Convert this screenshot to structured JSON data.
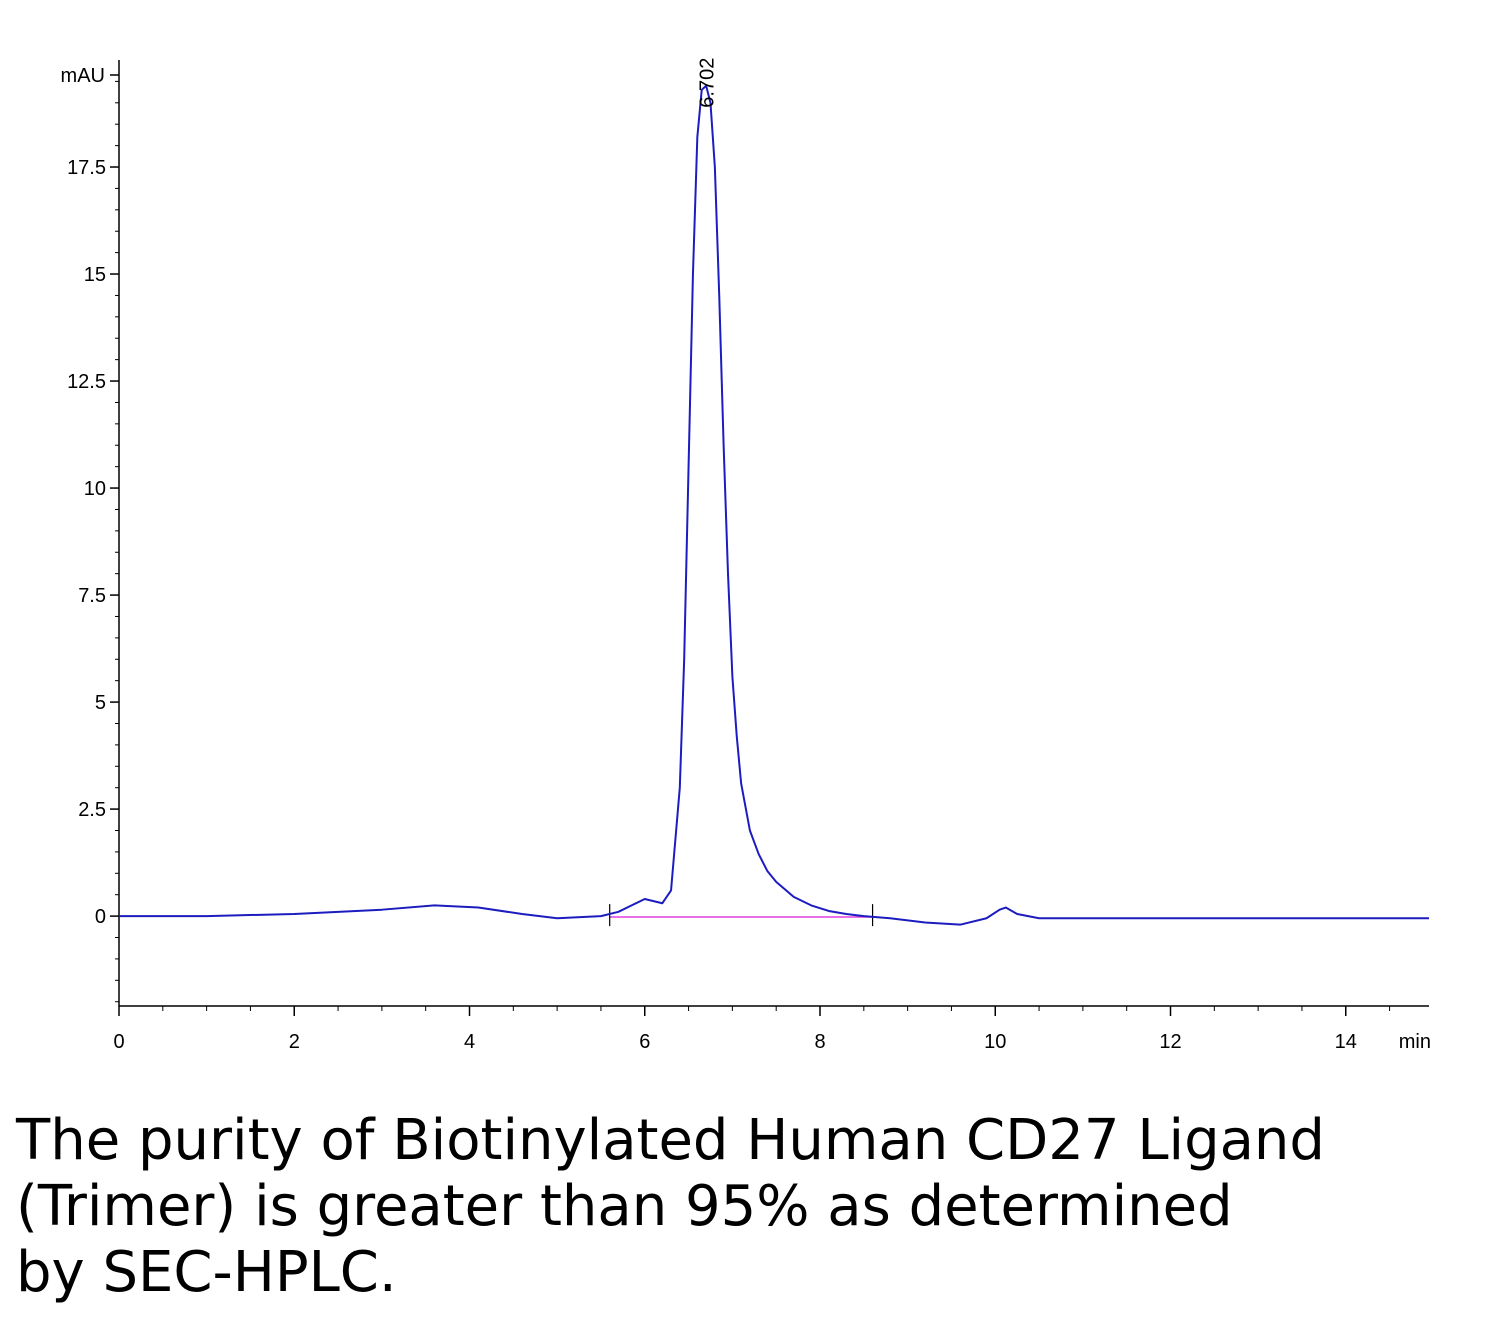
{
  "chart_data": {
    "type": "line",
    "title": "",
    "xlabel": "min",
    "ylabel": "mAU",
    "xlim": [
      0,
      14.95
    ],
    "ylim": [
      -2.1,
      20
    ],
    "x_ticks": [
      0,
      2,
      4,
      6,
      8,
      10,
      12,
      14
    ],
    "x_tick_labels": [
      "0",
      "2",
      "4",
      "6",
      "8",
      "10",
      "12",
      "14"
    ],
    "y_ticks": [
      0,
      2.5,
      5,
      7.5,
      10,
      12.5,
      15,
      17.5
    ],
    "y_tick_labels": [
      "0",
      "2.5",
      "5",
      "7.5",
      "10",
      "12.5",
      "15",
      "17.5"
    ],
    "series": [
      {
        "color": "#1c1cbf",
        "x": [
          0,
          1,
          2,
          3,
          3.6,
          4.1,
          4.6,
          5.0,
          5.5,
          5.7,
          5.85,
          6.0,
          6.1,
          6.2,
          6.3,
          6.4,
          6.45,
          6.5,
          6.55,
          6.6,
          6.65,
          6.7,
          6.75,
          6.8,
          6.85,
          6.9,
          6.95,
          7.0,
          7.05,
          7.1,
          7.2,
          7.3,
          7.4,
          7.5,
          7.7,
          7.9,
          8.1,
          8.3,
          8.5,
          8.8,
          9.2,
          9.6,
          9.9,
          10.05,
          10.12,
          10.25,
          10.5,
          11,
          12,
          13,
          14,
          14.95
        ],
        "y": [
          0,
          0,
          0.05,
          0.15,
          0.25,
          0.2,
          0.05,
          -0.05,
          0,
          0.1,
          0.25,
          0.4,
          0.35,
          0.3,
          0.6,
          3.0,
          6.0,
          10.5,
          15.0,
          18.2,
          19.3,
          19.4,
          19.0,
          17.5,
          14.5,
          11.0,
          8.0,
          5.6,
          4.2,
          3.1,
          2.0,
          1.45,
          1.05,
          0.8,
          0.45,
          0.25,
          0.12,
          0.05,
          0,
          -0.05,
          -0.15,
          -0.2,
          -0.05,
          0.15,
          0.2,
          0.05,
          -0.05,
          -0.05,
          -0.05,
          -0.05,
          -0.05,
          -0.05
        ]
      }
    ],
    "baseline": {
      "color": "#e040e0",
      "x": [
        5.6,
        8.6
      ],
      "y": [
        -0.02,
        -0.02
      ]
    },
    "peak_annotation": {
      "x": 6.702,
      "y": 19.4,
      "label": "6.702"
    },
    "integration_marks": [
      5.6,
      8.6
    ],
    "grid": false
  },
  "caption": {
    "lines": [
      "The purity of Biotinylated Human CD27 Ligand",
      "(Trimer) is greater than 95% as determined",
      "by SEC-HPLC."
    ]
  }
}
